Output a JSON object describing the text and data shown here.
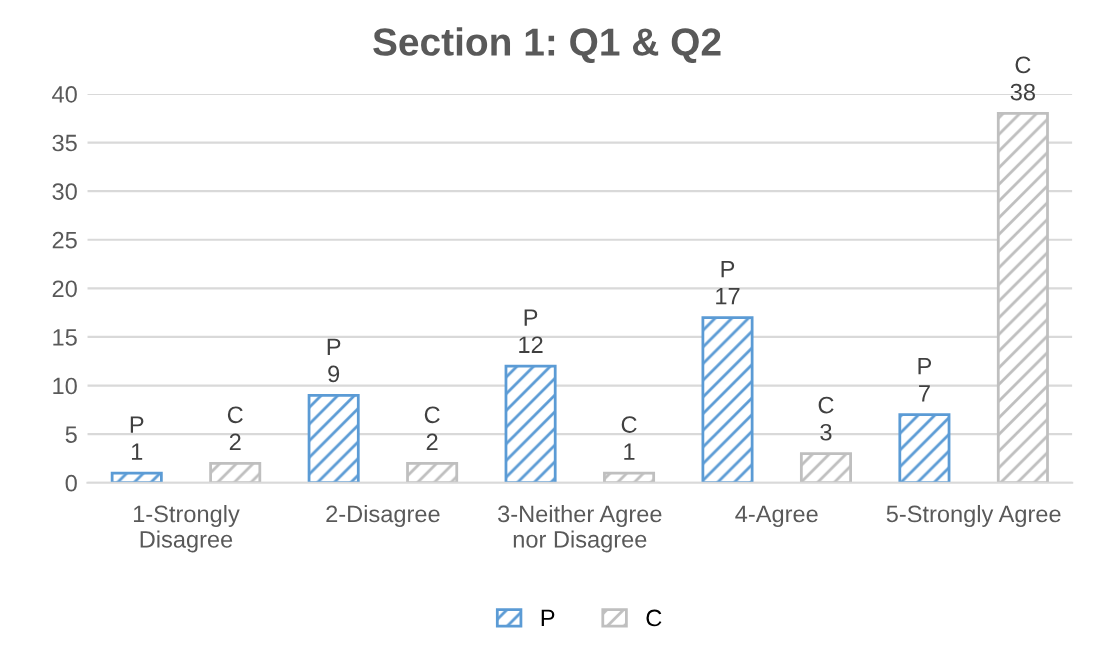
{
  "chart_data": {
    "type": "bar",
    "title": "Section 1: Q1 & Q2",
    "categories": [
      "1-Strongly\nDisagree",
      "2-Disagree",
      "3-Neither Agree\nnor Disagree",
      "4-Agree",
      "5-Strongly Agree"
    ],
    "series": [
      {
        "name": "P",
        "color": "#5b9bd5",
        "values": [
          1,
          9,
          12,
          17,
          7
        ],
        "value_labels": [
          "P\n1",
          "P\n9",
          "P\n12",
          "P\n17",
          "P\n7"
        ]
      },
      {
        "name": "C",
        "color": "#bfbfbf",
        "values": [
          2,
          2,
          1,
          3,
          38
        ],
        "value_labels": [
          "C\n2",
          "C\n2",
          "C\n1",
          "C\n3",
          "C\n38"
        ]
      }
    ],
    "ylim": [
      0,
      40
    ],
    "yticks": [
      0,
      5,
      10,
      15,
      20,
      25,
      30,
      35,
      40
    ],
    "grid": "y",
    "legend": "bottom"
  }
}
